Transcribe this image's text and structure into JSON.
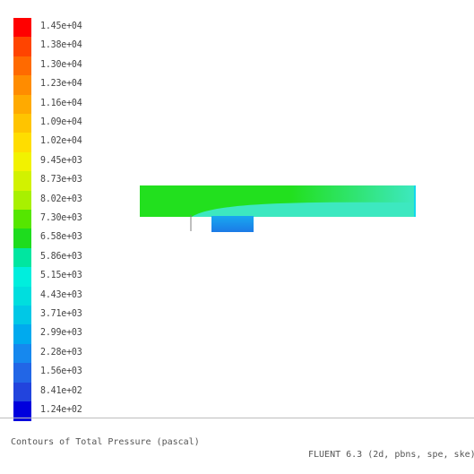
{
  "legend": {
    "labels": [
      "1.45e+04",
      "1.38e+04",
      "1.30e+04",
      "1.23e+04",
      "1.16e+04",
      "1.09e+04",
      "1.02e+04",
      "9.45e+03",
      "8.73e+03",
      "8.02e+03",
      "7.30e+03",
      "6.58e+03",
      "5.86e+03",
      "5.15e+03",
      "4.43e+03",
      "3.71e+03",
      "2.99e+03",
      "2.28e+03",
      "1.56e+03",
      "8.41e+02",
      "1.24e+02"
    ],
    "colors": [
      "#ff0000",
      "#ff4400",
      "#ff6a00",
      "#ff8c00",
      "#ffaa00",
      "#ffc400",
      "#ffdd00",
      "#f2f200",
      "#d2f200",
      "#a8f000",
      "#55e600",
      "#1edc1e",
      "#00e6a0",
      "#00eedd",
      "#00dede",
      "#00c8e6",
      "#00aaee",
      "#1688ee",
      "#2266e6",
      "#2244dd",
      "#0000dd"
    ]
  },
  "diagram": {
    "channel_colors": {
      "main_top": "#22e01e",
      "main_bottom": "#3de8c0",
      "outlet_end": "#10d8ee",
      "inner_wall": "#10b8ee",
      "cavity_top": "#18a8f0",
      "cavity_bottom": "#1c7ae6"
    }
  },
  "footer": {
    "caption": "Contours of Total Pressure (pascal)",
    "solver": "FLUENT 6.3 (2d, pbns, spe, ske)"
  }
}
